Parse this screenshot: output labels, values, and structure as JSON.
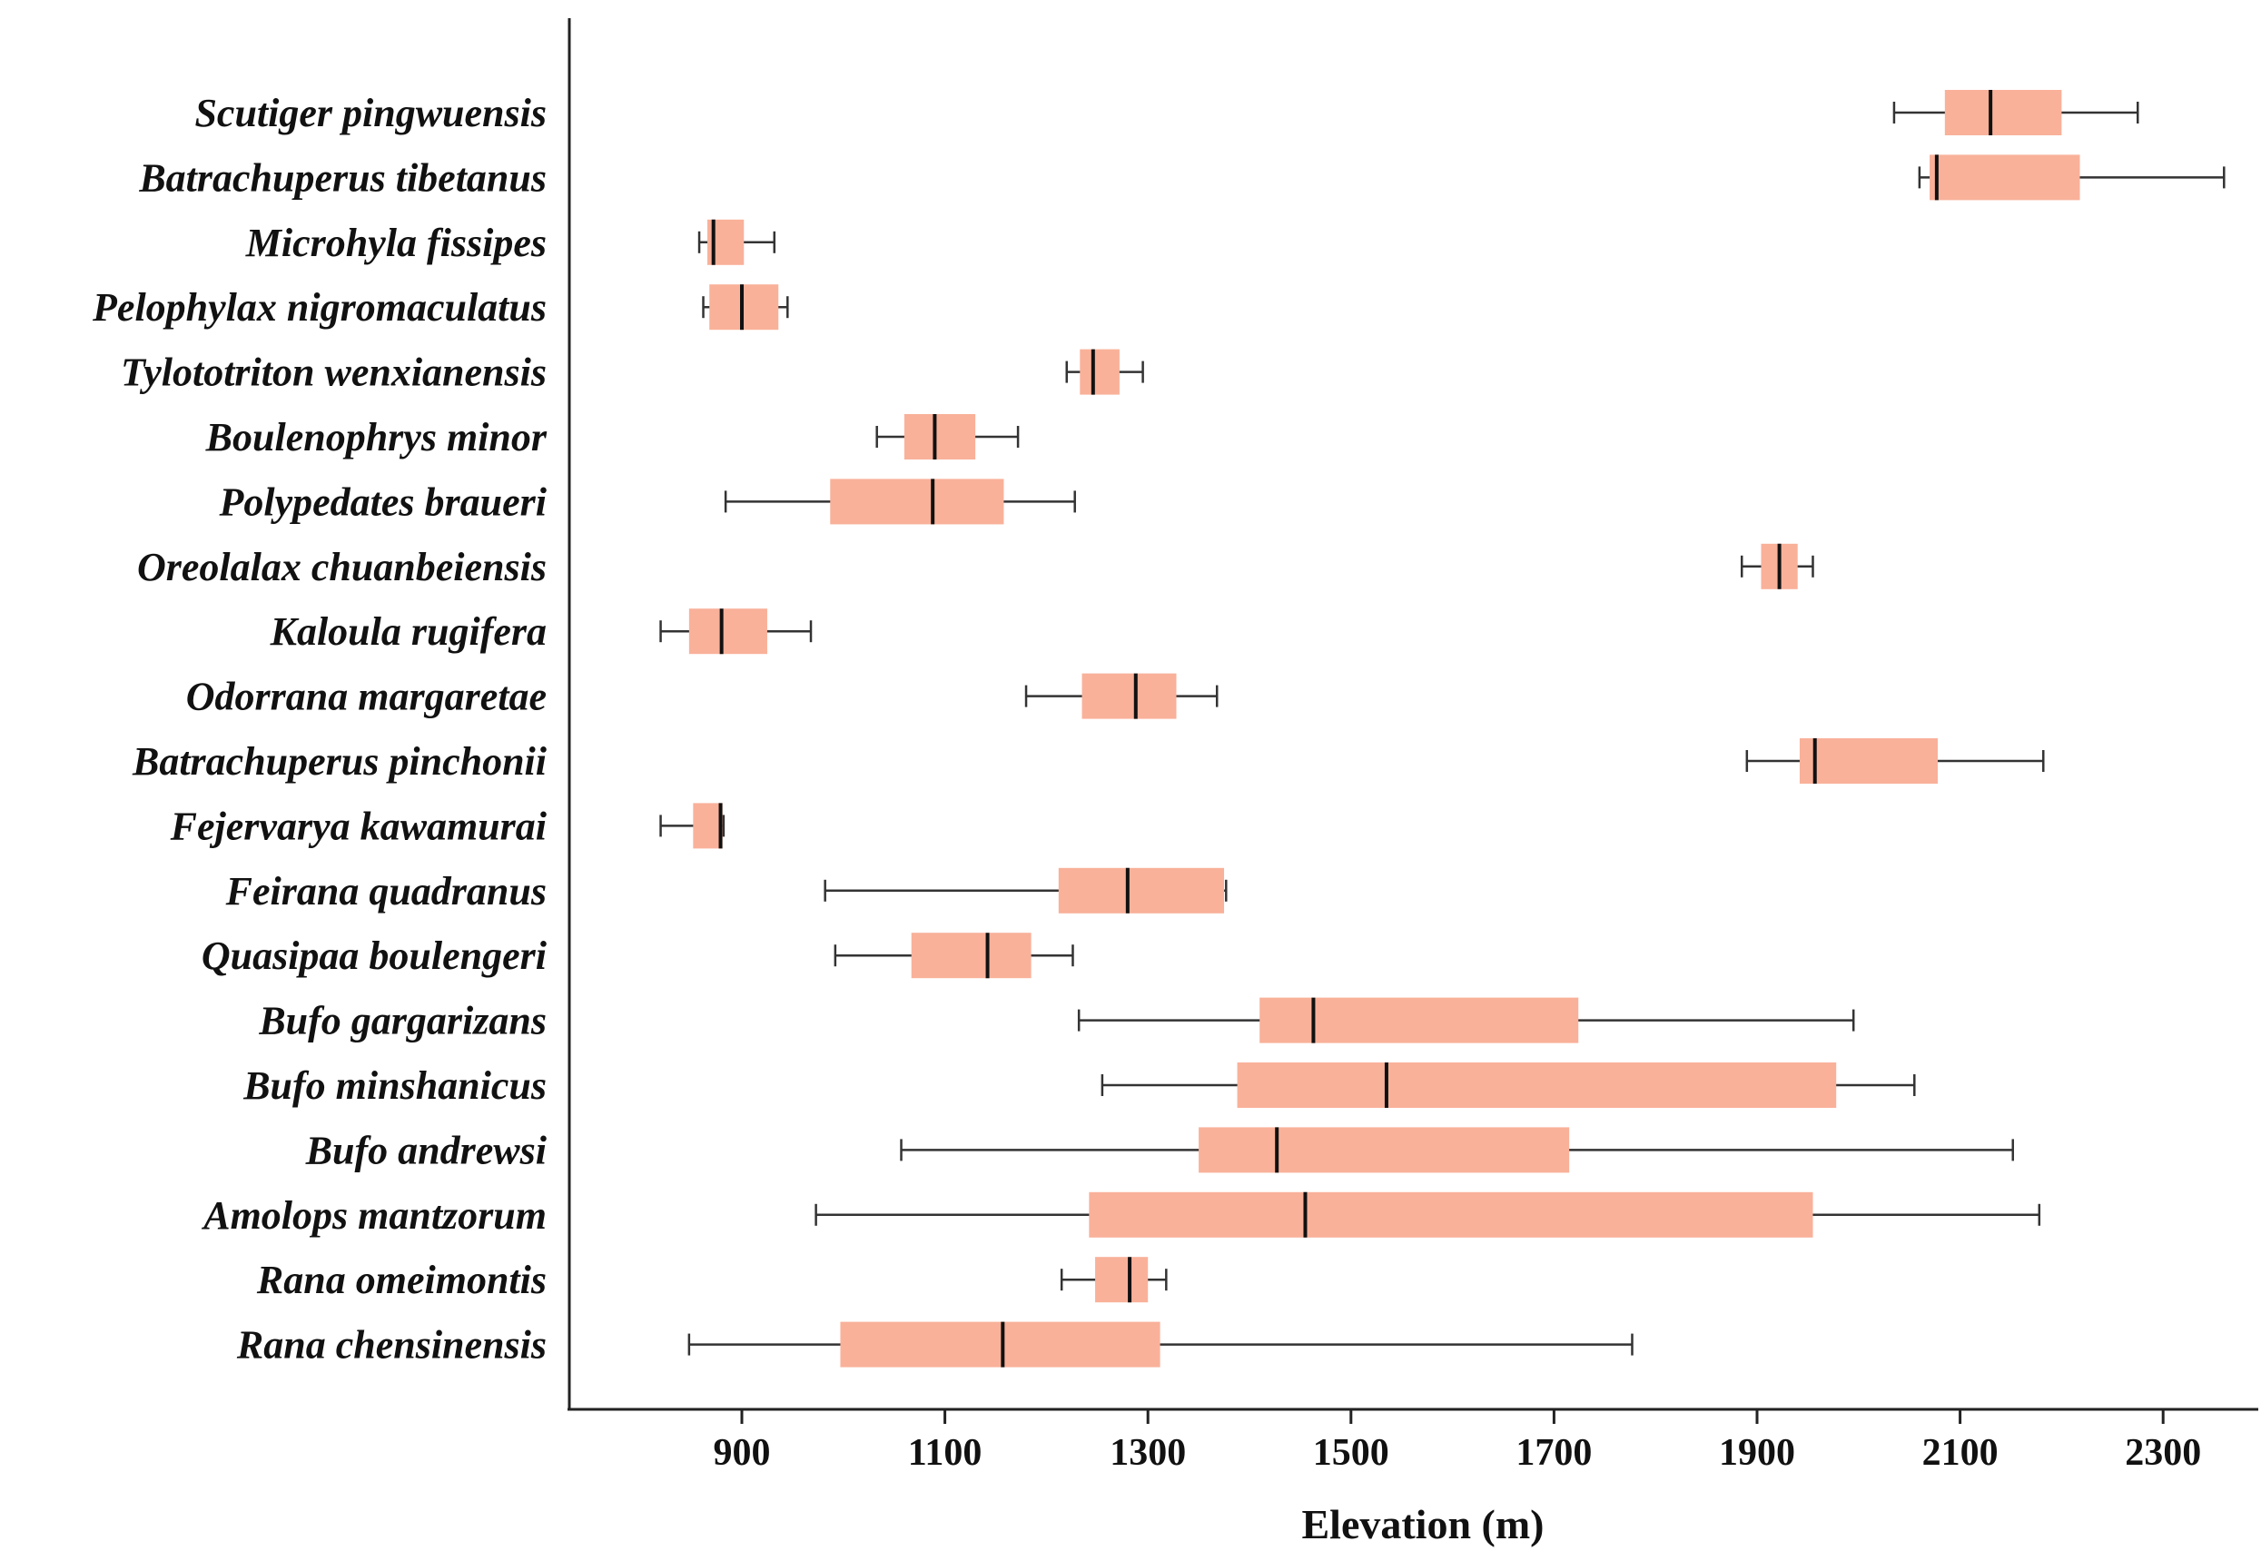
{
  "colors": {
    "box_fill": "#f9b19a",
    "median": "#111111",
    "whisker": "#333333",
    "axis": "#222222",
    "background": "#ffffff"
  },
  "chart_data": {
    "type": "boxplot",
    "orientation": "horizontal",
    "title": "",
    "xlabel": "Elevation (m)",
    "ylabel": "",
    "xlim": [
      730,
      2390
    ],
    "xticks": [
      900,
      1100,
      1300,
      1500,
      1700,
      1900,
      2100,
      2300
    ],
    "grid": false,
    "legend": "none",
    "series": [
      {
        "name": "Scutiger pingwuensis",
        "whisker_low": 2035,
        "q1": 2085,
        "median": 2130,
        "q3": 2200,
        "whisker_high": 2275
      },
      {
        "name": "Batrachuperus tibetanus",
        "whisker_low": 2060,
        "q1": 2070,
        "median": 2077,
        "q3": 2218,
        "whisker_high": 2360
      },
      {
        "name": "Microhyla fissipes",
        "whisker_low": 858,
        "q1": 866,
        "median": 872,
        "q3": 902,
        "whisker_high": 932
      },
      {
        "name": "Pelophylax nigromaculatus",
        "whisker_low": 862,
        "q1": 868,
        "median": 900,
        "q3": 936,
        "whisker_high": 945
      },
      {
        "name": "Tylototriton wenxianensis",
        "whisker_low": 1220,
        "q1": 1233,
        "median": 1246,
        "q3": 1272,
        "whisker_high": 1295
      },
      {
        "name": "Boulenophrys minor",
        "whisker_low": 1033,
        "q1": 1060,
        "median": 1090,
        "q3": 1130,
        "whisker_high": 1172
      },
      {
        "name": "Polypedates braueri",
        "whisker_low": 884,
        "q1": 987,
        "median": 1088,
        "q3": 1158,
        "whisker_high": 1228
      },
      {
        "name": "Oreolalax chuanbeiensis",
        "whisker_low": 1885,
        "q1": 1904,
        "median": 1922,
        "q3": 1940,
        "whisker_high": 1955
      },
      {
        "name": "Kaloula rugifera",
        "whisker_low": 820,
        "q1": 848,
        "median": 880,
        "q3": 925,
        "whisker_high": 968
      },
      {
        "name": "Odorrana margaretae",
        "whisker_low": 1180,
        "q1": 1235,
        "median": 1288,
        "q3": 1328,
        "whisker_high": 1368
      },
      {
        "name": "Batrachuperus pinchonii",
        "whisker_low": 1890,
        "q1": 1942,
        "median": 1957,
        "q3": 2078,
        "whisker_high": 2182
      },
      {
        "name": "Fejervarya kawamurai",
        "whisker_low": 820,
        "q1": 852,
        "median": 879,
        "q3": 881,
        "whisker_high": 882
      },
      {
        "name": "Feirana quadranus",
        "whisker_low": 982,
        "q1": 1212,
        "median": 1280,
        "q3": 1375,
        "whisker_high": 1377
      },
      {
        "name": "Quasipaa boulengeri",
        "whisker_low": 992,
        "q1": 1067,
        "median": 1142,
        "q3": 1185,
        "whisker_high": 1226
      },
      {
        "name": "Bufo gargarizans",
        "whisker_low": 1232,
        "q1": 1410,
        "median": 1463,
        "q3": 1724,
        "whisker_high": 1995
      },
      {
        "name": "Bufo minshanicus",
        "whisker_low": 1255,
        "q1": 1388,
        "median": 1535,
        "q3": 1978,
        "whisker_high": 2055
      },
      {
        "name": "Bufo andrewsi",
        "whisker_low": 1057,
        "q1": 1350,
        "median": 1427,
        "q3": 1715,
        "whisker_high": 2152
      },
      {
        "name": "Amolops mantzorum",
        "whisker_low": 973,
        "q1": 1242,
        "median": 1455,
        "q3": 1955,
        "whisker_high": 2178
      },
      {
        "name": "Rana omeimontis",
        "whisker_low": 1215,
        "q1": 1248,
        "median": 1282,
        "q3": 1300,
        "whisker_high": 1318
      },
      {
        "name": "Rana chensinensis",
        "whisker_low": 848,
        "q1": 997,
        "median": 1157,
        "q3": 1312,
        "whisker_high": 1777
      }
    ]
  }
}
